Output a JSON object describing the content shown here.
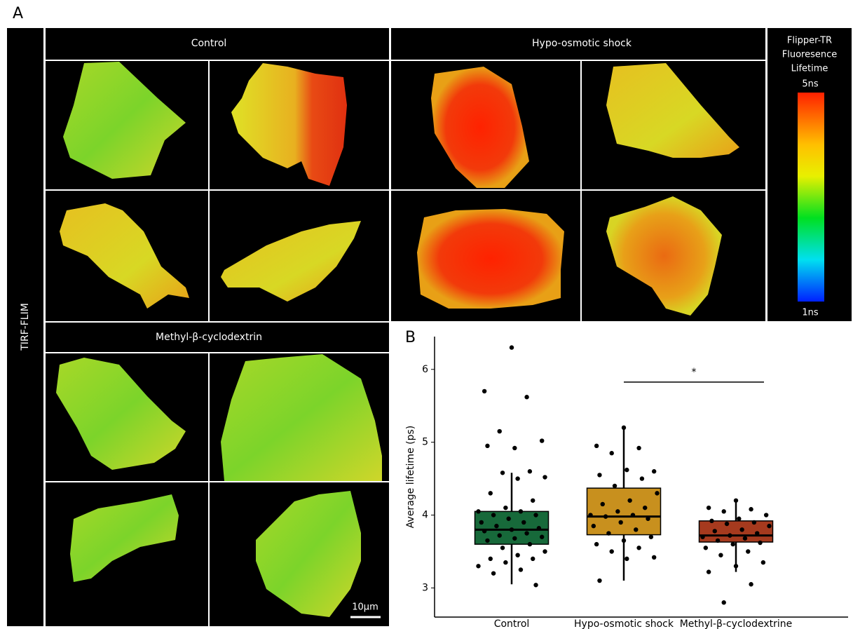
{
  "panel_a": {
    "label": "A",
    "side_label": "TIRF-FLIM",
    "groups": [
      "Control",
      "Hypo-osmotic shock",
      "Methyl-β-cyclodextrin"
    ],
    "colorbar": {
      "title": [
        "Flipper-TR",
        "Fluoresence",
        "Lifetime"
      ],
      "top": "5ns",
      "bottom": "1ns"
    },
    "scale_bar": "10μm"
  },
  "chart_data": {
    "type": "box",
    "label": "B",
    "categories": [
      "Control",
      "Hypo-osmotic shock",
      "Methyl-β-cyclodextrine"
    ],
    "ylabel": "Average lifetime (ps)",
    "ylim": [
      2.6,
      6.45
    ],
    "yticks": [
      3,
      4,
      5,
      6
    ],
    "annotation": "*",
    "boxes": [
      {
        "min": 3.05,
        "q1": 3.6,
        "median": 3.8,
        "q3": 4.05,
        "max": 4.58,
        "color": "#17693a",
        "points": [
          6.3,
          5.7,
          5.62,
          5.15,
          5.02,
          4.92,
          4.95,
          4.6,
          4.58,
          4.52,
          4.5,
          4.3,
          4.2,
          4.1,
          4.05,
          4.05,
          4.0,
          4.0,
          3.95,
          3.9,
          3.9,
          3.85,
          3.82,
          3.8,
          3.78,
          3.75,
          3.72,
          3.7,
          3.68,
          3.65,
          3.6,
          3.55,
          3.5,
          3.45,
          3.4,
          3.4,
          3.35,
          3.3,
          3.25,
          3.2,
          3.04
        ]
      },
      {
        "min": 3.1,
        "q1": 3.73,
        "median": 3.98,
        "q3": 4.37,
        "max": 5.2,
        "color": "#c8901e",
        "points": [
          5.2,
          4.95,
          4.92,
          4.85,
          4.6,
          4.62,
          4.55,
          4.5,
          4.4,
          4.3,
          4.2,
          4.15,
          4.1,
          4.05,
          4.0,
          4.0,
          3.98,
          3.95,
          3.9,
          3.85,
          3.8,
          3.75,
          3.7,
          3.65,
          3.6,
          3.55,
          3.5,
          3.42,
          3.4,
          3.1
        ]
      },
      {
        "min": 3.22,
        "q1": 3.63,
        "median": 3.72,
        "q3": 3.92,
        "max": 4.18,
        "color": "#a63a1e",
        "points": [
          4.2,
          4.1,
          4.08,
          4.05,
          4.0,
          3.95,
          3.92,
          3.9,
          3.88,
          3.85,
          3.8,
          3.78,
          3.75,
          3.72,
          3.7,
          3.68,
          3.65,
          3.62,
          3.6,
          3.55,
          3.5,
          3.45,
          3.35,
          3.3,
          3.22,
          3.05,
          2.8
        ]
      }
    ]
  }
}
